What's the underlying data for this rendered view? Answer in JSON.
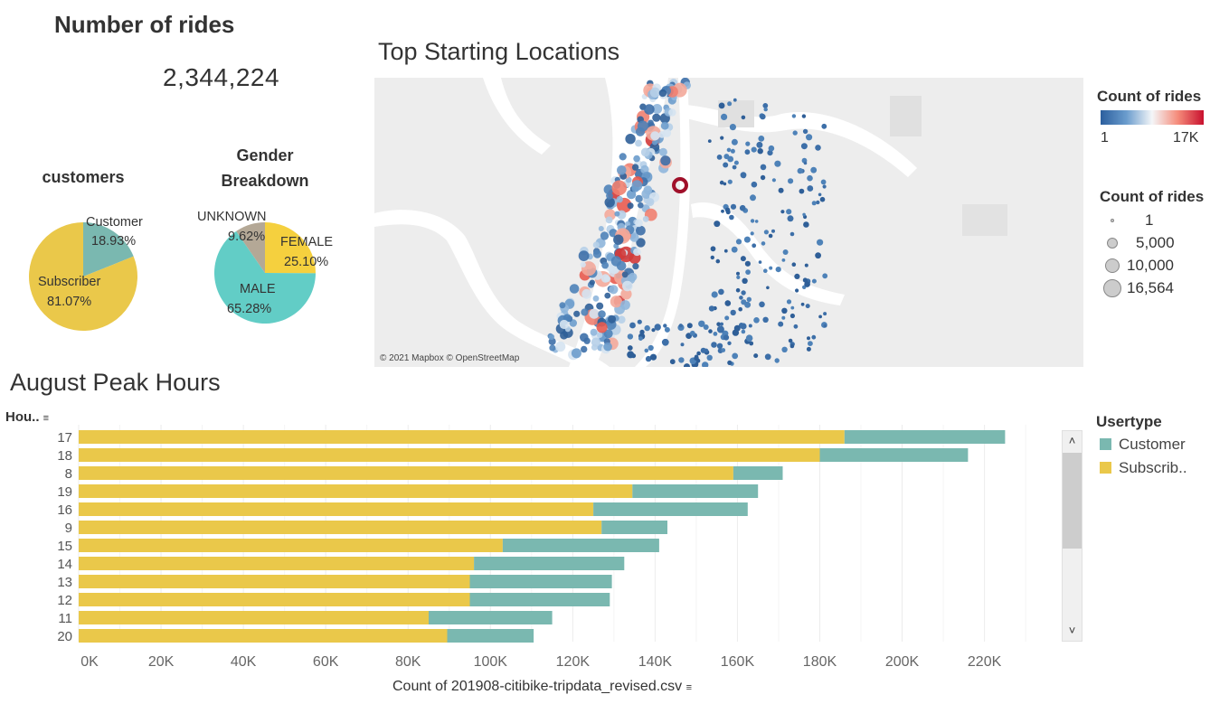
{
  "header": {
    "rides_title": "Number of rides",
    "rides_total": "2,344,224"
  },
  "customers_pie": {
    "title": "customers",
    "slices": [
      {
        "label": "Customer",
        "pct_text": "18.93%",
        "value": 18.93,
        "color": "#7ab8b0"
      },
      {
        "label": "Subscriber",
        "pct_text": "81.07%",
        "value": 81.07,
        "color": "#eac84a"
      }
    ]
  },
  "gender_pie": {
    "title_line1": "Gender",
    "title_line2": "Breakdown",
    "slices": [
      {
        "label": "FEMALE",
        "pct_text": "25.10%",
        "value": 25.1,
        "color": "#f5d03e"
      },
      {
        "label": "MALE",
        "pct_text": "65.28%",
        "value": 65.28,
        "color": "#62cdc6"
      },
      {
        "label": "UNKNOWN",
        "pct_text": "9.62%",
        "value": 9.62,
        "color": "#b4a896"
      }
    ]
  },
  "map": {
    "title": "Top Starting Locations",
    "attribution": "© 2021 Mapbox © OpenStreetMap"
  },
  "legend_color": {
    "title": "Count of rides",
    "min_label": "1",
    "max_label": "17K",
    "low_color": "#2c5f9e",
    "high_color": "#c8102e"
  },
  "legend_size": {
    "title": "Count of rides",
    "items": [
      "1",
      "5,000",
      "10,000",
      "16,564"
    ]
  },
  "peak": {
    "title": "August Peak Hours",
    "hour_header": "Hou..",
    "x_axis_title": "Count of 201908-citibike-tripdata_revised.csv",
    "legend_title": "Usertype",
    "legend_items": [
      {
        "label": "Customer",
        "color": "#7ab8b0"
      },
      {
        "label": "Subscrib..",
        "color": "#eac84a"
      }
    ],
    "scroll_up": "˄",
    "scroll_down": "˅"
  },
  "chart_data": {
    "type": "bar",
    "orientation": "horizontal",
    "stacked": true,
    "categories": [
      "17",
      "18",
      "8",
      "19",
      "16",
      "9",
      "15",
      "14",
      "13",
      "12",
      "11",
      "20"
    ],
    "series": [
      {
        "name": "Subscrib..",
        "color": "#eac84a",
        "values": [
          186000,
          180000,
          159000,
          134500,
          125000,
          127000,
          103000,
          96000,
          95000,
          95000,
          85000,
          89500
        ]
      },
      {
        "name": "Customer",
        "color": "#7ab8b0",
        "values": [
          39000,
          36000,
          12000,
          30500,
          37500,
          16000,
          38000,
          36500,
          34500,
          34000,
          30000,
          21000
        ]
      }
    ],
    "x_ticks": [
      "0K",
      "20K",
      "40K",
      "60K",
      "80K",
      "100K",
      "120K",
      "140K",
      "160K",
      "180K",
      "200K",
      "220K"
    ],
    "xlabel": "Count of 201908-citibike-tripdata_revised.csv",
    "ylabel": "Hou..",
    "xlim": [
      0,
      237000
    ],
    "grid": true,
    "legend": "right"
  }
}
